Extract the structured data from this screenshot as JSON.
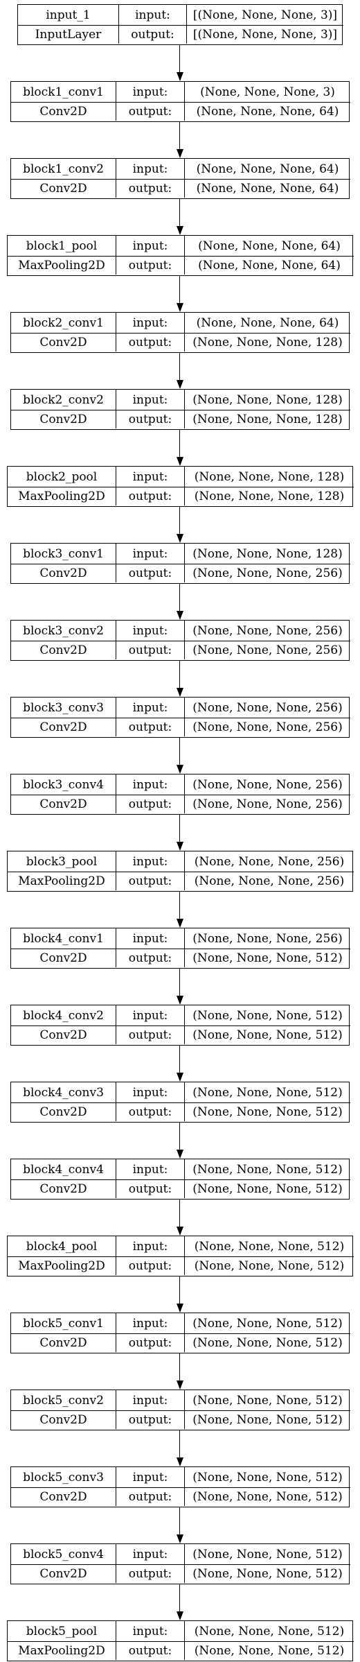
{
  "labels": {
    "input": "input:",
    "output": "output:"
  },
  "layers": [
    {
      "name": "input_1",
      "type": "InputLayer",
      "input": "[(None, None, None, 3)]",
      "output": "[(None, None, None, 3)]"
    },
    {
      "name": "block1_conv1",
      "type": "Conv2D",
      "input": "(None, None, None, 3)",
      "output": "(None, None, None, 64)"
    },
    {
      "name": "block1_conv2",
      "type": "Conv2D",
      "input": "(None, None, None, 64)",
      "output": "(None, None, None, 64)"
    },
    {
      "name": "block1_pool",
      "type": "MaxPooling2D",
      "input": "(None, None, None, 64)",
      "output": "(None, None, None, 64)"
    },
    {
      "name": "block2_conv1",
      "type": "Conv2D",
      "input": "(None, None, None, 64)",
      "output": "(None, None, None, 128)"
    },
    {
      "name": "block2_conv2",
      "type": "Conv2D",
      "input": "(None, None, None, 128)",
      "output": "(None, None, None, 128)"
    },
    {
      "name": "block2_pool",
      "type": "MaxPooling2D",
      "input": "(None, None, None, 128)",
      "output": "(None, None, None, 128)"
    },
    {
      "name": "block3_conv1",
      "type": "Conv2D",
      "input": "(None, None, None, 128)",
      "output": "(None, None, None, 256)"
    },
    {
      "name": "block3_conv2",
      "type": "Conv2D",
      "input": "(None, None, None, 256)",
      "output": "(None, None, None, 256)"
    },
    {
      "name": "block3_conv3",
      "type": "Conv2D",
      "input": "(None, None, None, 256)",
      "output": "(None, None, None, 256)"
    },
    {
      "name": "block3_conv4",
      "type": "Conv2D",
      "input": "(None, None, None, 256)",
      "output": "(None, None, None, 256)"
    },
    {
      "name": "block3_pool",
      "type": "MaxPooling2D",
      "input": "(None, None, None, 256)",
      "output": "(None, None, None, 256)"
    },
    {
      "name": "block4_conv1",
      "type": "Conv2D",
      "input": "(None, None, None, 256)",
      "output": "(None, None, None, 512)"
    },
    {
      "name": "block4_conv2",
      "type": "Conv2D",
      "input": "(None, None, None, 512)",
      "output": "(None, None, None, 512)"
    },
    {
      "name": "block4_conv3",
      "type": "Conv2D",
      "input": "(None, None, None, 512)",
      "output": "(None, None, None, 512)"
    },
    {
      "name": "block4_conv4",
      "type": "Conv2D",
      "input": "(None, None, None, 512)",
      "output": "(None, None, None, 512)"
    },
    {
      "name": "block4_pool",
      "type": "MaxPooling2D",
      "input": "(None, None, None, 512)",
      "output": "(None, None, None, 512)"
    },
    {
      "name": "block5_conv1",
      "type": "Conv2D",
      "input": "(None, None, None, 512)",
      "output": "(None, None, None, 512)"
    },
    {
      "name": "block5_conv2",
      "type": "Conv2D",
      "input": "(None, None, None, 512)",
      "output": "(None, None, None, 512)"
    },
    {
      "name": "block5_conv3",
      "type": "Conv2D",
      "input": "(None, None, None, 512)",
      "output": "(None, None, None, 512)"
    },
    {
      "name": "block5_conv4",
      "type": "Conv2D",
      "input": "(None, None, None, 512)",
      "output": "(None, None, None, 512)"
    },
    {
      "name": "block5_pool",
      "type": "MaxPooling2D",
      "input": "(None, None, None, 512)",
      "output": "(None, None, None, 512)"
    }
  ]
}
